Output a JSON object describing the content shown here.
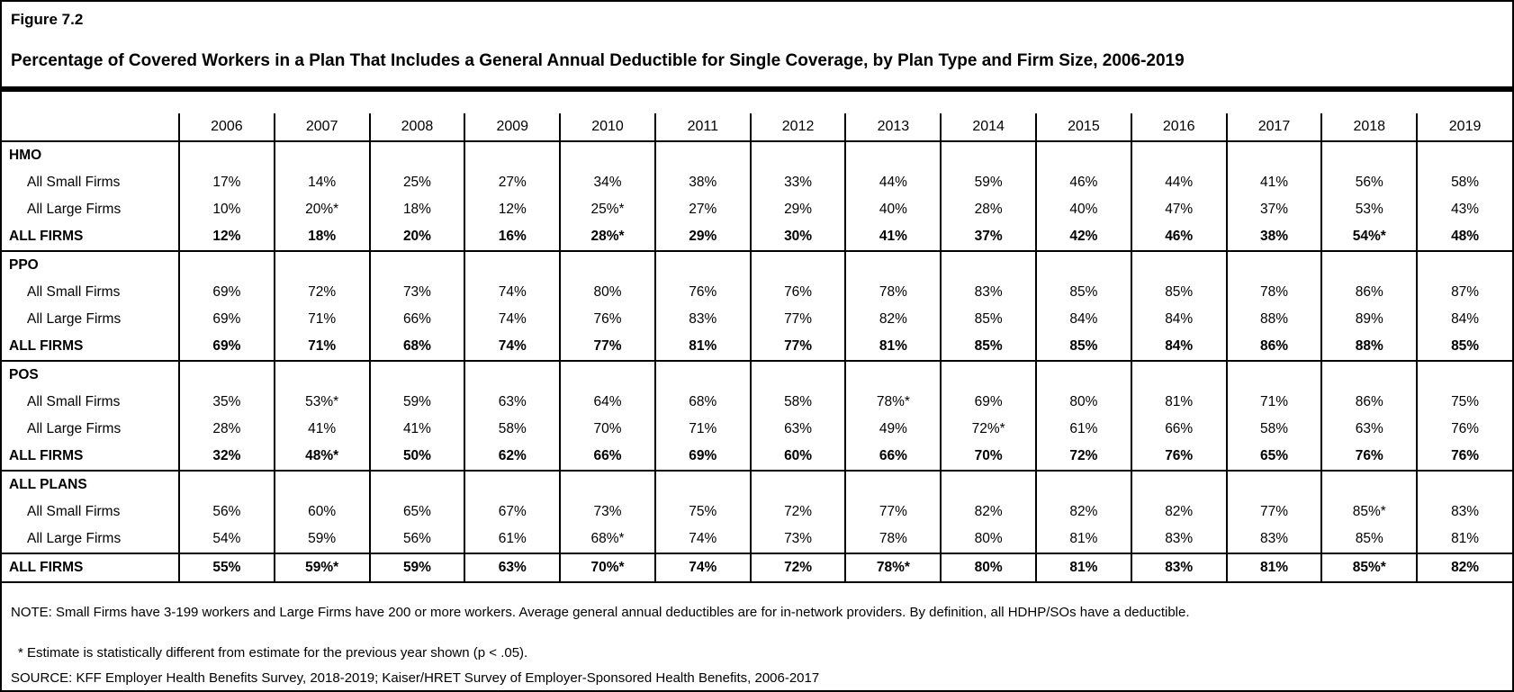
{
  "figure": {
    "label": "Figure 7.2",
    "title": "Percentage of Covered Workers in a Plan That Includes a General Annual Deductible for Single Coverage, by Plan Type and Firm Size, 2006-2019"
  },
  "chart_data": {
    "type": "table",
    "years": [
      "2006",
      "2007",
      "2008",
      "2009",
      "2010",
      "2011",
      "2012",
      "2013",
      "2014",
      "2015",
      "2016",
      "2017",
      "2018",
      "2019"
    ],
    "sections": [
      {
        "name": "HMO",
        "rows": [
          {
            "label": "All Small Firms",
            "style": "sub",
            "values": [
              "17%",
              "14%",
              "25%",
              "27%",
              "34%",
              "38%",
              "33%",
              "44%",
              "59%",
              "46%",
              "44%",
              "41%",
              "56%",
              "58%"
            ]
          },
          {
            "label": "All Large Firms",
            "style": "sub",
            "values": [
              "10%",
              "20%*",
              "18%",
              "12%",
              "25%*",
              "27%",
              "29%",
              "40%",
              "28%",
              "40%",
              "47%",
              "37%",
              "53%",
              "43%"
            ]
          },
          {
            "label": "ALL FIRMS",
            "style": "total",
            "values": [
              "12%",
              "18%",
              "20%",
              "16%",
              "28%*",
              "29%",
              "30%",
              "41%",
              "37%",
              "42%",
              "46%",
              "38%",
              "54%*",
              "48%"
            ]
          }
        ]
      },
      {
        "name": "PPO",
        "rows": [
          {
            "label": "All Small Firms",
            "style": "sub",
            "values": [
              "69%",
              "72%",
              "73%",
              "74%",
              "80%",
              "76%",
              "76%",
              "78%",
              "83%",
              "85%",
              "85%",
              "78%",
              "86%",
              "87%"
            ]
          },
          {
            "label": "All Large Firms",
            "style": "sub",
            "values": [
              "69%",
              "71%",
              "66%",
              "74%",
              "76%",
              "83%",
              "77%",
              "82%",
              "85%",
              "84%",
              "84%",
              "88%",
              "89%",
              "84%"
            ]
          },
          {
            "label": "ALL FIRMS",
            "style": "total",
            "values": [
              "69%",
              "71%",
              "68%",
              "74%",
              "77%",
              "81%",
              "77%",
              "81%",
              "85%",
              "85%",
              "84%",
              "86%",
              "88%",
              "85%"
            ]
          }
        ]
      },
      {
        "name": "POS",
        "rows": [
          {
            "label": "All Small Firms",
            "style": "sub",
            "values": [
              "35%",
              "53%*",
              "59%",
              "63%",
              "64%",
              "68%",
              "58%",
              "78%*",
              "69%",
              "80%",
              "81%",
              "71%",
              "86%",
              "75%"
            ]
          },
          {
            "label": "All Large Firms",
            "style": "sub",
            "values": [
              "28%",
              "41%",
              "41%",
              "58%",
              "70%",
              "71%",
              "63%",
              "49%",
              "72%*",
              "61%",
              "66%",
              "58%",
              "63%",
              "76%"
            ]
          },
          {
            "label": "ALL FIRMS",
            "style": "total",
            "values": [
              "32%",
              "48%*",
              "50%",
              "62%",
              "66%",
              "69%",
              "60%",
              "66%",
              "70%",
              "72%",
              "76%",
              "65%",
              "76%",
              "76%"
            ]
          }
        ]
      },
      {
        "name": "ALL PLANS",
        "rows": [
          {
            "label": "All Small Firms",
            "style": "sub",
            "values": [
              "56%",
              "60%",
              "65%",
              "67%",
              "73%",
              "75%",
              "72%",
              "77%",
              "82%",
              "82%",
              "82%",
              "77%",
              "85%*",
              "83%"
            ]
          },
          {
            "label": "All Large Firms",
            "style": "sub",
            "values": [
              "54%",
              "59%",
              "56%",
              "61%",
              "68%*",
              "74%",
              "73%",
              "78%",
              "80%",
              "81%",
              "83%",
              "83%",
              "85%",
              "81%"
            ]
          }
        ]
      }
    ],
    "footer_row": {
      "label": "ALL FIRMS",
      "values": [
        "55%",
        "59%*",
        "59%",
        "63%",
        "70%*",
        "74%",
        "72%",
        "78%*",
        "80%",
        "81%",
        "83%",
        "81%",
        "85%*",
        "82%"
      ]
    }
  },
  "notes": {
    "main": "NOTE: Small Firms have 3-199 workers and Large Firms have 200 or more workers. Average general annual deductibles are for in-network providers. By definition, all HDHP/SOs have a deductible.",
    "star": "* Estimate is statistically different from estimate for the previous year shown (p < .05).",
    "source": "SOURCE: KFF Employer Health Benefits Survey, 2018-2019; Kaiser/HRET Survey of Employer-Sponsored Health Benefits, 2006-2017"
  }
}
